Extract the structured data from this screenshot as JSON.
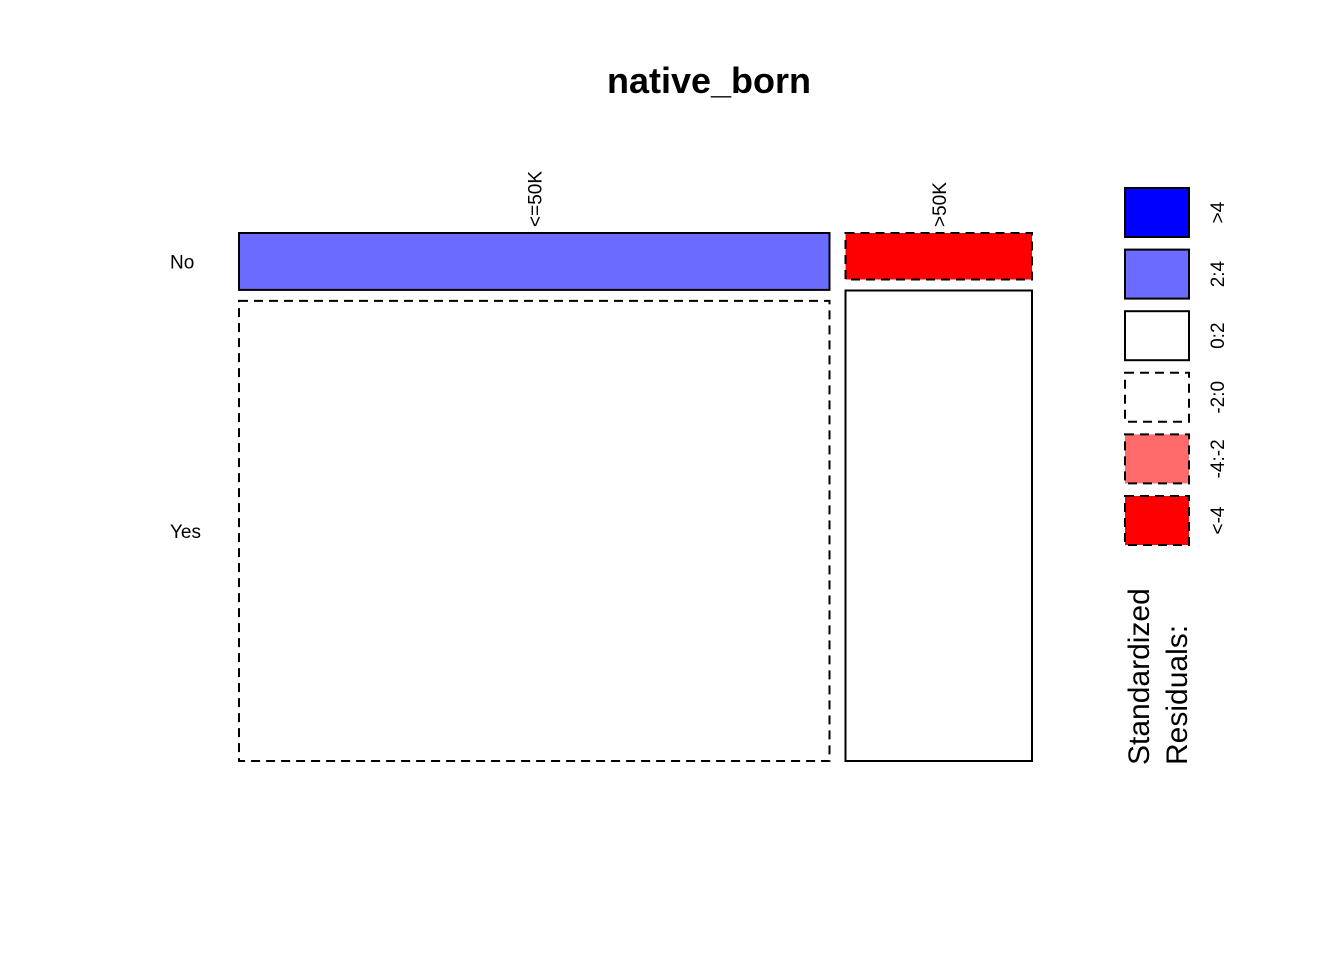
{
  "chart_data": {
    "type": "mosaic",
    "title": "native_born",
    "columns": [
      "<=50K",
      ">50K"
    ],
    "rows": [
      "No",
      "Yes"
    ],
    "column_proportions": [
      0.76,
      0.24
    ],
    "cells": [
      {
        "column": "<=50K",
        "row": "No",
        "proportion": 0.11,
        "residual_class": "2:4"
      },
      {
        "column": "<=50K",
        "row": "Yes",
        "proportion": 0.89,
        "residual_class": "-2:0"
      },
      {
        "column": ">50K",
        "row": "No",
        "proportion": 0.09,
        "residual_class": "<-4"
      },
      {
        "column": ">50K",
        "row": "Yes",
        "proportion": 0.91,
        "residual_class": "0:2"
      }
    ],
    "legend": {
      "title_lines": [
        "Standardized",
        "Residuals:"
      ],
      "entries": [
        {
          "label": ">4",
          "color": "#0000ff",
          "dashed": false
        },
        {
          "label": "2:4",
          "color": "#6b6bff",
          "dashed": false
        },
        {
          "label": "0:2",
          "color": "#ffffff",
          "dashed": false
        },
        {
          "label": "-2:0",
          "color": "#ffffff",
          "dashed": true
        },
        {
          "label": "-4:-2",
          "color": "#ff6b6b",
          "dashed": true
        },
        {
          "label": "<-4",
          "color": "#ff0000",
          "dashed": true
        }
      ]
    }
  }
}
